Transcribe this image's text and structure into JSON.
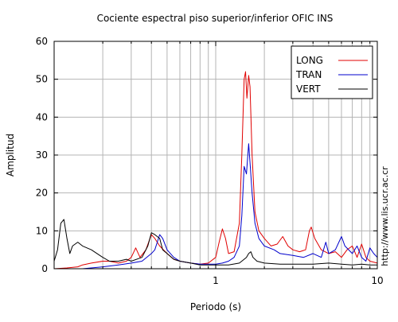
{
  "chart_data": {
    "type": "line",
    "title": "Cociente espectral piso superior/inferior  OFIC INS",
    "xlabel": "Periodo (s)",
    "ylabel": "Amplitud",
    "x_scale": "log",
    "xlim": [
      0.1,
      10
    ],
    "ylim": [
      0,
      60
    ],
    "x_tick_labels": [
      "1",
      "10"
    ],
    "y_ticks": [
      0,
      10,
      20,
      30,
      40,
      50,
      60
    ],
    "grid": true,
    "legend_position": "top-right",
    "credit_text": "http://www.lis.ucr.ac.cr",
    "series": [
      {
        "name": "LONG",
        "color": "#e00000",
        "points": [
          [
            0.1,
            0
          ],
          [
            0.12,
            0.2
          ],
          [
            0.14,
            0.5
          ],
          [
            0.15,
            1
          ],
          [
            0.17,
            1.5
          ],
          [
            0.2,
            2
          ],
          [
            0.22,
            2
          ],
          [
            0.25,
            1.5
          ],
          [
            0.28,
            2
          ],
          [
            0.3,
            3
          ],
          [
            0.32,
            5.5
          ],
          [
            0.34,
            3
          ],
          [
            0.37,
            5
          ],
          [
            0.4,
            9
          ],
          [
            0.42,
            8
          ],
          [
            0.45,
            6
          ],
          [
            0.5,
            4
          ],
          [
            0.55,
            2.5
          ],
          [
            0.6,
            2
          ],
          [
            0.7,
            1.5
          ],
          [
            0.8,
            1.2
          ],
          [
            0.9,
            1.5
          ],
          [
            1.0,
            3
          ],
          [
            1.05,
            7
          ],
          [
            1.1,
            10.5
          ],
          [
            1.15,
            8
          ],
          [
            1.2,
            4
          ],
          [
            1.3,
            4.5
          ],
          [
            1.4,
            12
          ],
          [
            1.45,
            30
          ],
          [
            1.5,
            50
          ],
          [
            1.53,
            52
          ],
          [
            1.56,
            45
          ],
          [
            1.6,
            51
          ],
          [
            1.63,
            48
          ],
          [
            1.68,
            30
          ],
          [
            1.75,
            15
          ],
          [
            1.85,
            10
          ],
          [
            2.0,
            8
          ],
          [
            2.2,
            6
          ],
          [
            2.4,
            6.5
          ],
          [
            2.6,
            8.5
          ],
          [
            2.8,
            6
          ],
          [
            3.0,
            5
          ],
          [
            3.3,
            4.5
          ],
          [
            3.6,
            5
          ],
          [
            3.8,
            10
          ],
          [
            3.9,
            11
          ],
          [
            4.1,
            8
          ],
          [
            4.5,
            5
          ],
          [
            5.0,
            4
          ],
          [
            5.5,
            4.5
          ],
          [
            6.0,
            3
          ],
          [
            6.5,
            5
          ],
          [
            7.0,
            6
          ],
          [
            7.5,
            3
          ],
          [
            8.0,
            6.5
          ],
          [
            8.5,
            3
          ],
          [
            9.0,
            2
          ],
          [
            10.0,
            1.5
          ]
        ]
      },
      {
        "name": "TRAN",
        "color": "#0000cc",
        "points": [
          [
            0.1,
            0
          ],
          [
            0.15,
            0
          ],
          [
            0.2,
            0.5
          ],
          [
            0.25,
            1
          ],
          [
            0.3,
            1.5
          ],
          [
            0.35,
            2
          ],
          [
            0.4,
            4
          ],
          [
            0.42,
            5
          ],
          [
            0.45,
            9
          ],
          [
            0.47,
            8
          ],
          [
            0.5,
            5
          ],
          [
            0.55,
            3
          ],
          [
            0.6,
            2
          ],
          [
            0.7,
            1.5
          ],
          [
            0.8,
            1.2
          ],
          [
            1.0,
            1.2
          ],
          [
            1.1,
            1.5
          ],
          [
            1.2,
            2
          ],
          [
            1.3,
            3
          ],
          [
            1.4,
            6
          ],
          [
            1.45,
            14
          ],
          [
            1.5,
            27
          ],
          [
            1.55,
            25
          ],
          [
            1.6,
            33
          ],
          [
            1.63,
            28
          ],
          [
            1.68,
            20
          ],
          [
            1.75,
            12
          ],
          [
            1.85,
            8
          ],
          [
            2.0,
            6
          ],
          [
            2.3,
            5
          ],
          [
            2.5,
            4
          ],
          [
            3.0,
            3.5
          ],
          [
            3.5,
            3
          ],
          [
            4.0,
            4
          ],
          [
            4.5,
            3
          ],
          [
            4.8,
            7
          ],
          [
            5.0,
            4
          ],
          [
            5.5,
            5
          ],
          [
            6.0,
            8.5
          ],
          [
            6.3,
            6
          ],
          [
            7.0,
            4
          ],
          [
            7.5,
            6
          ],
          [
            8.0,
            3
          ],
          [
            8.5,
            2
          ],
          [
            9.0,
            5.5
          ],
          [
            9.5,
            4
          ],
          [
            10.0,
            3
          ]
        ]
      },
      {
        "name": "VERT",
        "color": "#000000",
        "points": [
          [
            0.1,
            2
          ],
          [
            0.105,
            5
          ],
          [
            0.11,
            12
          ],
          [
            0.115,
            13
          ],
          [
            0.12,
            8
          ],
          [
            0.125,
            4
          ],
          [
            0.13,
            6
          ],
          [
            0.14,
            7
          ],
          [
            0.15,
            6
          ],
          [
            0.17,
            5
          ],
          [
            0.2,
            3
          ],
          [
            0.22,
            2
          ],
          [
            0.25,
            2
          ],
          [
            0.28,
            2.5
          ],
          [
            0.3,
            2
          ],
          [
            0.35,
            3
          ],
          [
            0.38,
            6
          ],
          [
            0.4,
            9.5
          ],
          [
            0.42,
            9
          ],
          [
            0.45,
            8
          ],
          [
            0.47,
            5
          ],
          [
            0.5,
            4
          ],
          [
            0.55,
            2.5
          ],
          [
            0.6,
            2
          ],
          [
            0.7,
            1.5
          ],
          [
            0.8,
            1
          ],
          [
            1.0,
            1
          ],
          [
            1.2,
            1
          ],
          [
            1.4,
            1.5
          ],
          [
            1.5,
            2.5
          ],
          [
            1.55,
            3
          ],
          [
            1.6,
            4
          ],
          [
            1.65,
            4.5
          ],
          [
            1.7,
            3
          ],
          [
            1.8,
            2
          ],
          [
            2.0,
            1.5
          ],
          [
            2.5,
            1.2
          ],
          [
            3.0,
            1.2
          ],
          [
            4.0,
            1.2
          ],
          [
            5.0,
            1.5
          ],
          [
            6.0,
            1.2
          ],
          [
            7.0,
            1
          ],
          [
            8.0,
            1.2
          ],
          [
            9.0,
            1
          ],
          [
            10.0,
            1
          ]
        ]
      }
    ]
  }
}
